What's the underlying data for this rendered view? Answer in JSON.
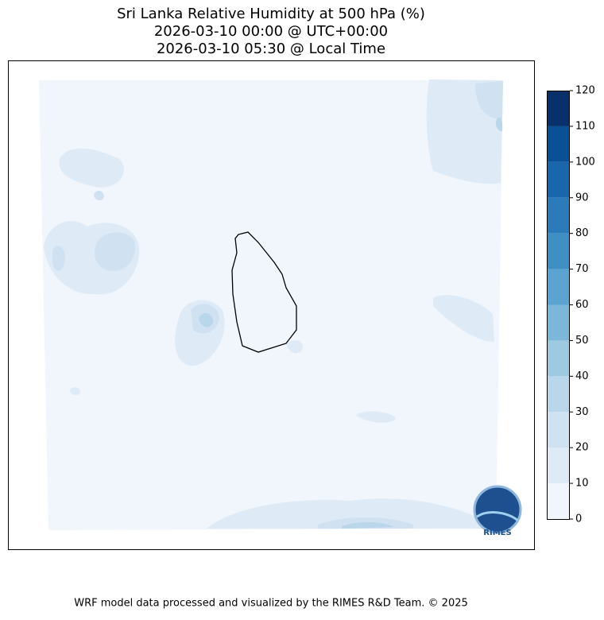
{
  "title": [
    "Sri Lanka Relative Humidity at 500 hPa (%)",
    "2026-03-10 00:00 @ UTC+00:00",
    "2026-03-10 05:30 @ Local Time"
  ],
  "colorbar": {
    "levels": [
      0,
      10,
      20,
      30,
      40,
      50,
      60,
      70,
      80,
      90,
      100,
      110,
      120
    ],
    "colors": [
      "#f0f6fc",
      "#deebf7",
      "#d0e1f2",
      "#b9d6ea",
      "#9ecae1",
      "#7cb7da",
      "#5ba3d0",
      "#3f8fc5",
      "#2b7bba",
      "#1966ad",
      "#0a5097",
      "#08306b"
    ]
  },
  "logo_text": "RIMES",
  "footer": "WRF model data processed and visualized by the RIMES R&D Team. © 2025"
}
